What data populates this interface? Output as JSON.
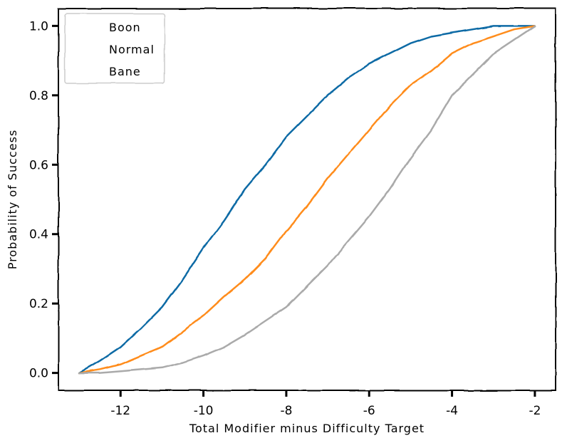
{
  "chart_data": {
    "type": "line",
    "title": "",
    "xlabel": "Total Modifier minus Difficulty Target",
    "ylabel": "Probability of Success",
    "xlim": [
      -13.5,
      -1.5
    ],
    "ylim": [
      -0.05,
      1.05
    ],
    "xticks": [
      -12,
      -10,
      -8,
      -6,
      -4,
      -2
    ],
    "xtick_labels": [
      "-12",
      "-10",
      "-8",
      "-6",
      "-4",
      "-2"
    ],
    "yticks": [
      0.0,
      0.2,
      0.4,
      0.6,
      0.8,
      1.0
    ],
    "ytick_labels": [
      "0.0",
      "0.2",
      "0.4",
      "0.6",
      "0.8",
      "1.0"
    ],
    "grid": false,
    "legend": "top-left",
    "x": [
      -13,
      -12.5,
      -12,
      -11.5,
      -11,
      -10.5,
      -10,
      -9.5,
      -9,
      -8.5,
      -8,
      -7.5,
      -7,
      -6.5,
      -6,
      -5.5,
      -5,
      -4.5,
      -4,
      -3.5,
      -3,
      -2.5,
      -2
    ],
    "series": [
      {
        "name": "Boon",
        "color": "#0f6ba5",
        "values": [
          0.0,
          0.035,
          0.075,
          0.13,
          0.19,
          0.27,
          0.36,
          0.44,
          0.53,
          0.6,
          0.68,
          0.74,
          0.8,
          0.85,
          0.89,
          0.92,
          0.95,
          0.97,
          0.98,
          0.99,
          1.0,
          1.0,
          1.0
        ]
      },
      {
        "name": "Normal",
        "color": "#ff8c1a",
        "values": [
          0.0,
          0.01,
          0.025,
          0.05,
          0.075,
          0.12,
          0.165,
          0.22,
          0.27,
          0.33,
          0.41,
          0.48,
          0.56,
          0.63,
          0.7,
          0.77,
          0.83,
          0.87,
          0.92,
          0.95,
          0.97,
          0.99,
          1.0
        ]
      },
      {
        "name": "Bane",
        "color": "#aaaaaa",
        "values": [
          0.0,
          0.0,
          0.005,
          0.01,
          0.015,
          0.03,
          0.05,
          0.075,
          0.11,
          0.15,
          0.19,
          0.25,
          0.31,
          0.38,
          0.45,
          0.53,
          0.62,
          0.7,
          0.8,
          0.86,
          0.92,
          0.96,
          1.0
        ]
      }
    ]
  }
}
